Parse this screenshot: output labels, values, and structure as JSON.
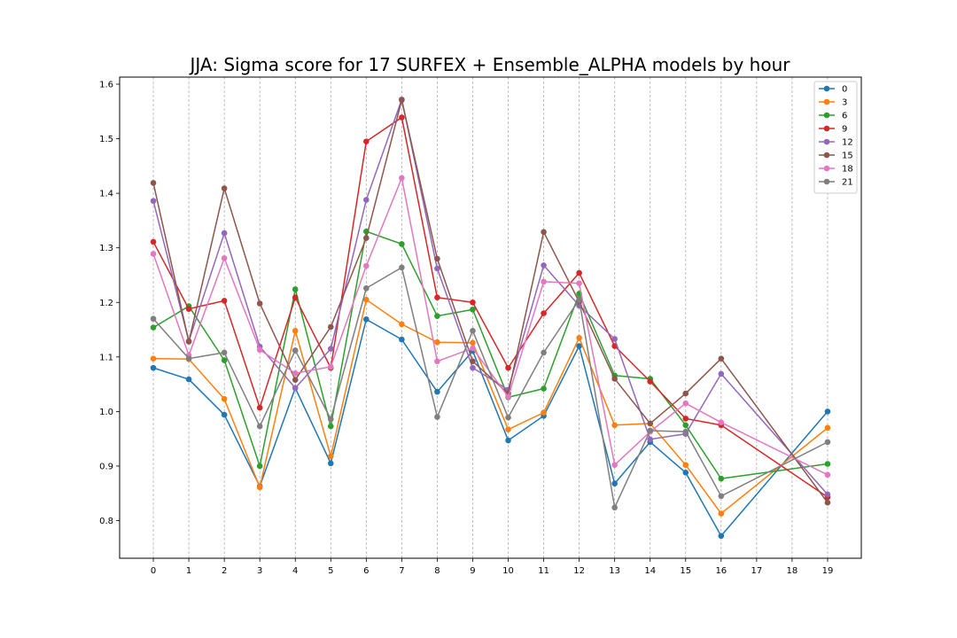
{
  "chart_data": {
    "type": "line",
    "title": "JJA: Sigma score for 17 SURFEX + Ensemble_ALPHA models by hour",
    "xlabel": "",
    "ylabel": "",
    "x": [
      0,
      1,
      2,
      3,
      4,
      5,
      6,
      7,
      8,
      9,
      10,
      11,
      12,
      13,
      14,
      15,
      16,
      19
    ],
    "x_ticks": [
      "0",
      "1",
      "2",
      "3",
      "4",
      "5",
      "6",
      "7",
      "8",
      "9",
      "10",
      "11",
      "12",
      "13",
      "14",
      "15",
      "16",
      "17",
      "18",
      "19"
    ],
    "y_ticks": [
      "0.8",
      "0.9",
      "1.0",
      "1.1",
      "1.2",
      "1.3",
      "1.4",
      "1.5",
      "1.6"
    ],
    "xlim": [
      -0.95,
      19.95
    ],
    "ylim": [
      0.731,
      1.613
    ],
    "grid": "vertical dashed",
    "legend_position": "top-right",
    "series": [
      {
        "name": "0",
        "color": "#1f77b4",
        "values": [
          1.08,
          1.059,
          0.994,
          0.863,
          1.043,
          0.905,
          1.169,
          1.132,
          1.036,
          1.111,
          0.947,
          0.992,
          1.12,
          0.868,
          0.944,
          0.888,
          0.772,
          1.0
        ]
      },
      {
        "name": "3",
        "color": "#ff7f0e",
        "values": [
          1.097,
          1.096,
          1.023,
          0.861,
          1.148,
          0.918,
          1.205,
          1.16,
          1.127,
          1.126,
          0.967,
          0.998,
          1.135,
          0.975,
          0.978,
          0.902,
          0.813,
          0.97
        ]
      },
      {
        "name": "6",
        "color": "#2ca02c",
        "values": [
          1.154,
          1.193,
          1.094,
          0.9,
          1.224,
          0.973,
          1.33,
          1.307,
          1.175,
          1.187,
          1.026,
          1.042,
          1.216,
          1.066,
          1.06,
          0.975,
          0.877,
          0.904
        ]
      },
      {
        "name": "9",
        "color": "#d62728",
        "values": [
          1.311,
          1.188,
          1.203,
          1.007,
          1.209,
          1.08,
          1.495,
          1.539,
          1.209,
          1.2,
          1.08,
          1.18,
          1.254,
          1.12,
          1.055,
          0.987,
          0.975,
          0.843
        ]
      },
      {
        "name": "12",
        "color": "#9467bd",
        "values": [
          1.386,
          1.129,
          1.327,
          1.119,
          1.043,
          1.115,
          1.388,
          1.572,
          1.262,
          1.08,
          1.04,
          1.268,
          1.194,
          1.133,
          0.949,
          0.959,
          1.069,
          0.848
        ]
      },
      {
        "name": "15",
        "color": "#8c564b",
        "values": [
          1.419,
          1.128,
          1.409,
          1.198,
          1.058,
          1.155,
          1.318,
          1.571,
          1.28,
          1.092,
          1.033,
          1.329,
          1.201,
          1.06,
          0.978,
          1.033,
          1.097,
          0.833
        ]
      },
      {
        "name": "18",
        "color": "#e377c2",
        "values": [
          1.289,
          1.103,
          1.281,
          1.113,
          1.07,
          1.082,
          1.267,
          1.428,
          1.092,
          1.116,
          1.027,
          1.238,
          1.235,
          0.902,
          0.963,
          1.015,
          0.98,
          0.884
        ]
      },
      {
        "name": "21",
        "color": "#7f7f7f",
        "values": [
          1.17,
          1.097,
          1.108,
          0.973,
          1.112,
          0.986,
          1.226,
          1.264,
          0.99,
          1.148,
          0.989,
          1.108,
          1.205,
          0.824,
          0.965,
          0.963,
          0.845,
          0.944
        ]
      }
    ]
  }
}
